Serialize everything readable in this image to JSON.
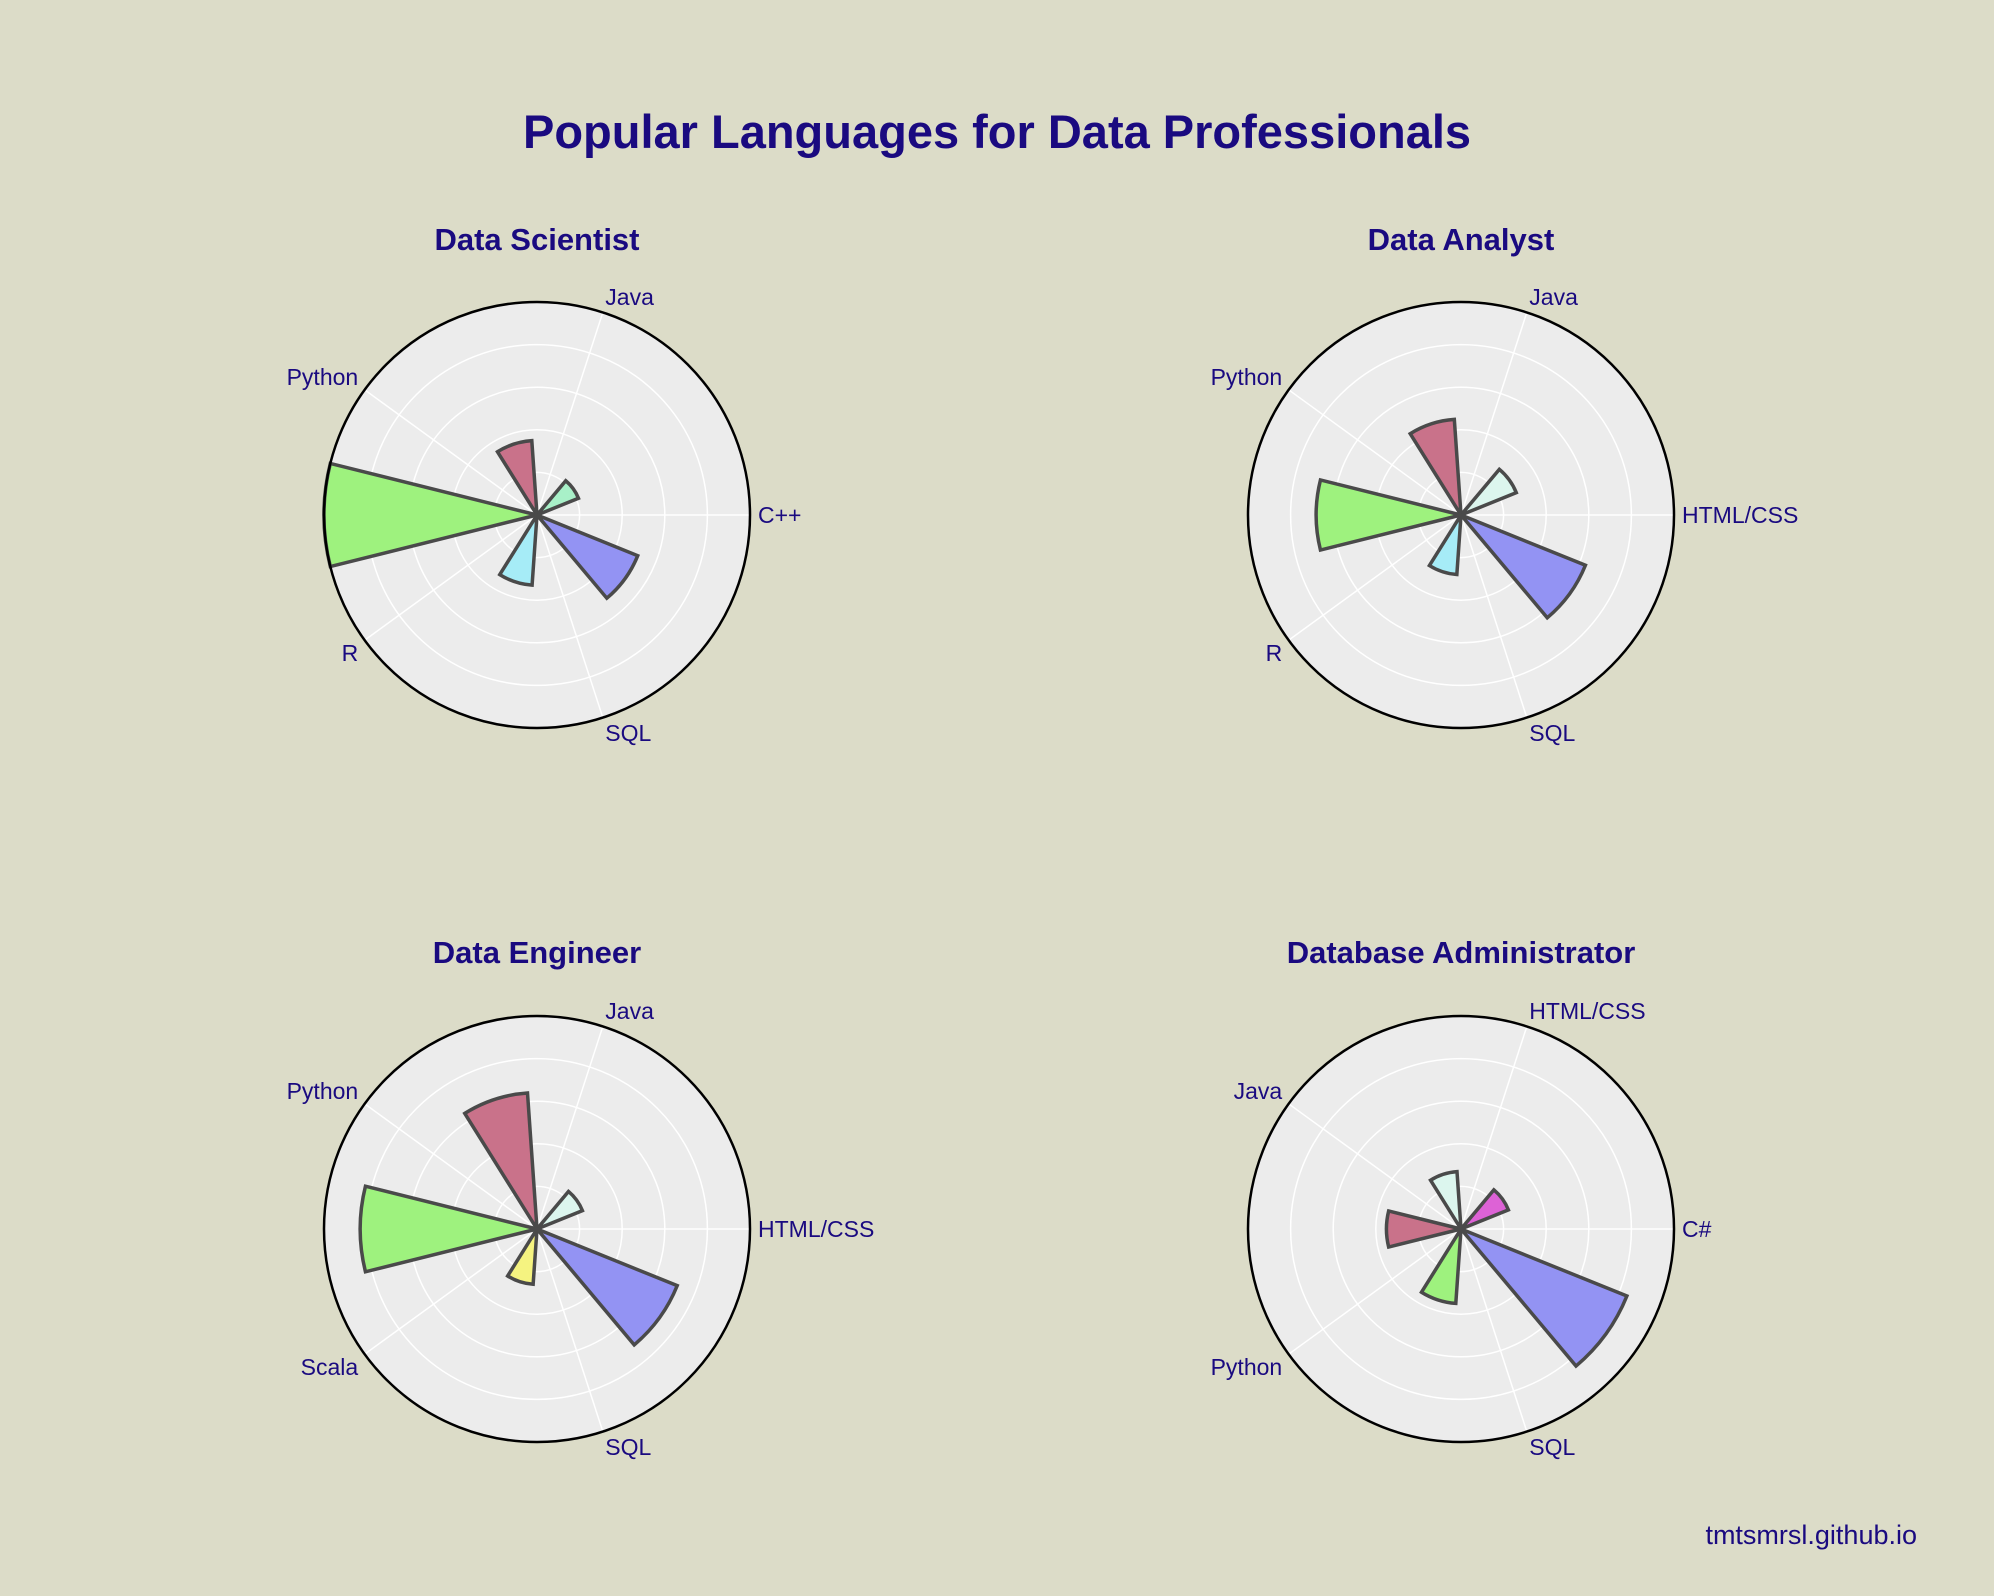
{
  "title": "Popular Languages for Data Professionals",
  "footer": "tmtsmrsl.github.io",
  "colors": {
    "Java": "#c9728a",
    "C++": "#a8f0c8",
    "HTML/CSS": "#dcf6ee",
    "SQL": "#9393f3",
    "R": "#a6ecf7",
    "Python": "#9ef27e",
    "Scala": "#f5f380",
    "C#": "#dd62d6"
  },
  "chart_data": [
    {
      "type": "barpolar",
      "title": "Data Scientist",
      "categories": [
        "C++",
        "Java",
        "Python",
        "R",
        "SQL"
      ],
      "values": [
        21,
        35,
        100,
        33,
        51
      ],
      "radial_range": [
        0,
        100
      ]
    },
    {
      "type": "barpolar",
      "title": "Data Analyst",
      "categories": [
        "HTML/CSS",
        "Java",
        "Python",
        "R",
        "SQL"
      ],
      "values": [
        28,
        45,
        68,
        28,
        63
      ],
      "radial_range": [
        0,
        100
      ]
    },
    {
      "type": "barpolar",
      "title": "Data Engineer",
      "categories": [
        "HTML/CSS",
        "Java",
        "Python",
        "Scala",
        "SQL"
      ],
      "values": [
        23,
        64,
        83,
        26,
        71
      ],
      "radial_range": [
        0,
        100
      ]
    },
    {
      "type": "barpolar",
      "title": "Database Administrator",
      "categories": [
        "C#",
        "HTML/CSS",
        "Java",
        "Python",
        "SQL"
      ],
      "values": [
        24,
        27,
        35,
        35,
        84
      ],
      "radial_range": [
        0,
        100
      ]
    }
  ]
}
